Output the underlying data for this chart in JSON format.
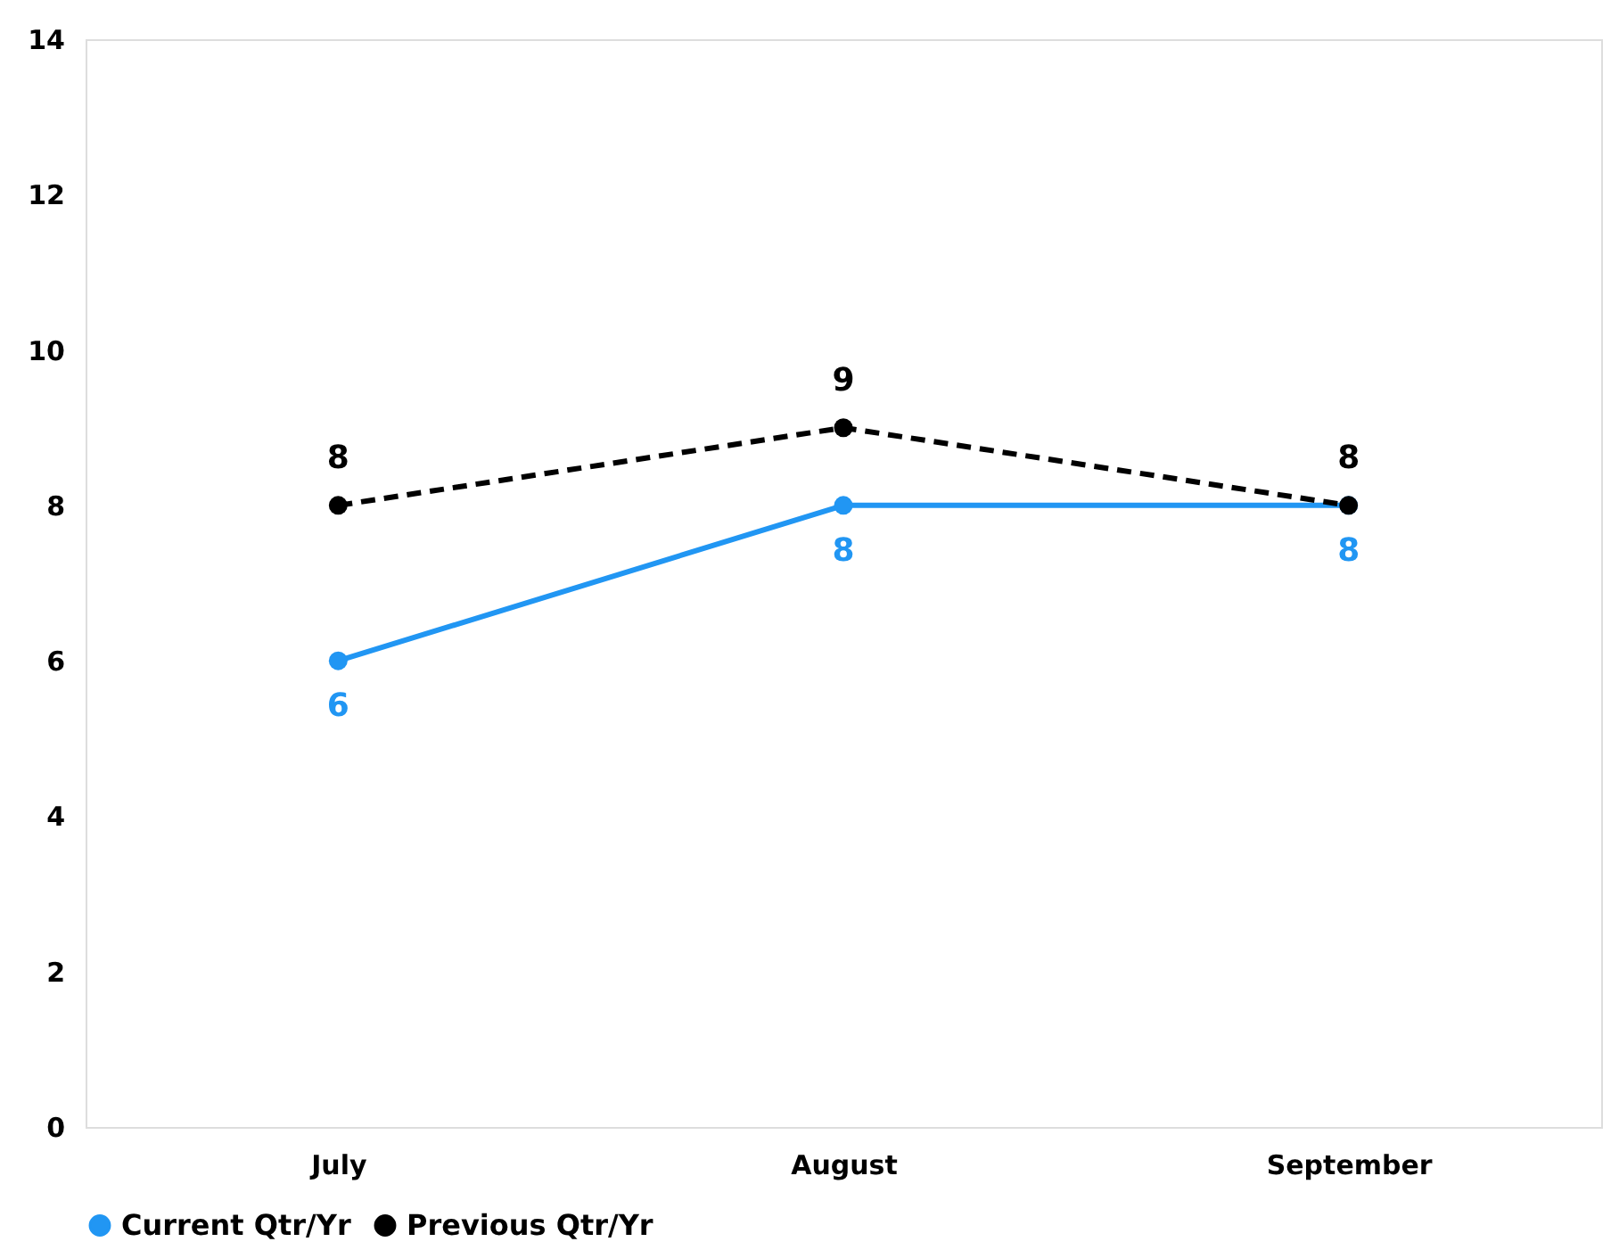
{
  "chart_data": {
    "type": "line",
    "categories": [
      "July",
      "August",
      "September"
    ],
    "series": [
      {
        "name": "Current Qtr/Yr",
        "color": "#2196f3",
        "values": [
          6,
          8,
          8
        ],
        "line_style": "solid"
      },
      {
        "name": "Previous Qtr/Yr",
        "color": "#000000",
        "values": [
          8,
          9,
          8
        ],
        "line_style": "dashed"
      }
    ],
    "ylim": [
      0,
      14
    ],
    "yticks": [
      0,
      2,
      4,
      6,
      8,
      10,
      12,
      14
    ],
    "grid": false,
    "legend": "bottom",
    "marker": "circle",
    "data_labels": true
  }
}
